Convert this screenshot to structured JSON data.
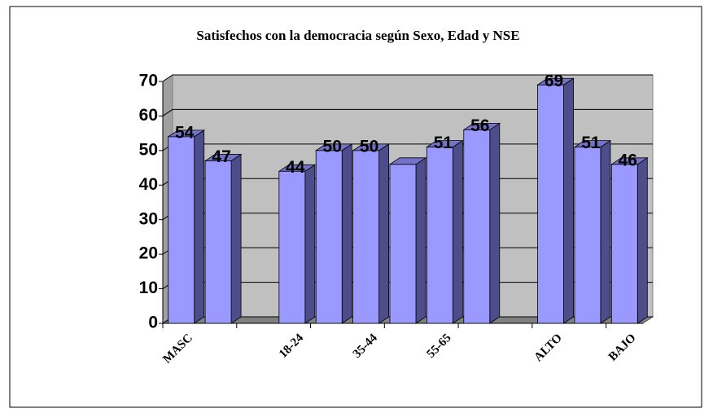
{
  "chart_data": {
    "type": "bar3d",
    "title": "Satisfechos con la democracia  según Sexo, Edad y NSE",
    "categories": [
      "MASC",
      null,
      null,
      "18-24",
      null,
      "35-44",
      null,
      "55-65",
      null,
      null,
      "ALTO",
      null,
      "BAJO"
    ],
    "values": [
      54,
      47,
      null,
      44,
      50,
      50,
      46,
      51,
      56,
      null,
      69,
      51,
      46
    ],
    "value_labels": [
      "54",
      "47",
      null,
      "44",
      "50",
      "50",
      null,
      "51",
      "56",
      null,
      "69",
      "51",
      "46"
    ],
    "color": "#9999ff",
    "ylim": [
      0,
      70
    ],
    "yticks": [
      0,
      10,
      20,
      30,
      40,
      50,
      60,
      70
    ],
    "grid": true
  }
}
